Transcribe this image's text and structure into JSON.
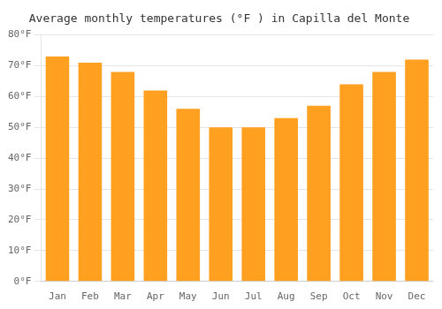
{
  "chart_data": {
    "type": "bar",
    "title": "Average monthly temperatures (°F ) in Capilla del Monte",
    "categories": [
      "Jan",
      "Feb",
      "Mar",
      "Apr",
      "May",
      "Jun",
      "Jul",
      "Aug",
      "Sep",
      "Oct",
      "Nov",
      "Dec"
    ],
    "values": [
      73,
      71,
      68,
      62,
      56,
      50,
      50,
      53,
      57,
      64,
      68,
      72
    ],
    "color": "#FFA020",
    "ylim": [
      0,
      80
    ],
    "yticks": [
      {
        "value": 0,
        "label": "0°F"
      },
      {
        "value": 10,
        "label": "10°F"
      },
      {
        "value": 20,
        "label": "20°F"
      },
      {
        "value": 30,
        "label": "30°F"
      },
      {
        "value": 40,
        "label": "40°F"
      },
      {
        "value": 50,
        "label": "50°F"
      },
      {
        "value": 60,
        "label": "60°F"
      },
      {
        "value": 70,
        "label": "70°F"
      },
      {
        "value": 80,
        "label": "80°F"
      }
    ],
    "grid": true
  }
}
